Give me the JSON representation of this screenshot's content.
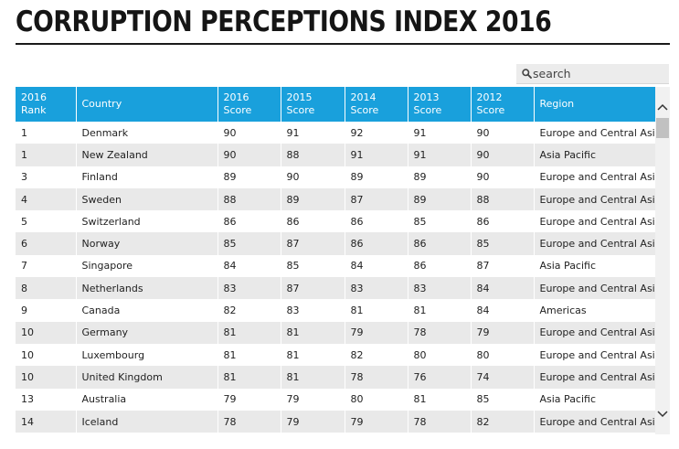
{
  "title": "CORRUPTION PERCEPTIONS INDEX 2016",
  "search": {
    "placeholder": "search"
  },
  "table": {
    "headers": [
      [
        "2016",
        "Rank"
      ],
      [
        "Country",
        ""
      ],
      [
        "2016",
        "Score"
      ],
      [
        "2015",
        "Score"
      ],
      [
        "2014",
        "Score"
      ],
      [
        "2013",
        "Score"
      ],
      [
        "2012",
        "Score"
      ],
      [
        "Region",
        ""
      ]
    ],
    "rows": [
      [
        "1",
        "Denmark",
        "90",
        "91",
        "92",
        "91",
        "90",
        "Europe and Central Asia"
      ],
      [
        "1",
        "New Zealand",
        "90",
        "88",
        "91",
        "91",
        "90",
        "Asia Pacific"
      ],
      [
        "3",
        "Finland",
        "89",
        "90",
        "89",
        "89",
        "90",
        "Europe and Central Asia"
      ],
      [
        "4",
        "Sweden",
        "88",
        "89",
        "87",
        "89",
        "88",
        "Europe and Central Asia"
      ],
      [
        "5",
        "Switzerland",
        "86",
        "86",
        "86",
        "85",
        "86",
        "Europe and Central Asia"
      ],
      [
        "6",
        "Norway",
        "85",
        "87",
        "86",
        "86",
        "85",
        "Europe and Central Asia"
      ],
      [
        "7",
        "Singapore",
        "84",
        "85",
        "84",
        "86",
        "87",
        "Asia Pacific"
      ],
      [
        "8",
        "Netherlands",
        "83",
        "87",
        "83",
        "83",
        "84",
        "Europe and Central Asia"
      ],
      [
        "9",
        "Canada",
        "82",
        "83",
        "81",
        "81",
        "84",
        "Americas"
      ],
      [
        "10",
        "Germany",
        "81",
        "81",
        "79",
        "78",
        "79",
        "Europe and Central Asia"
      ],
      [
        "10",
        "Luxembourg",
        "81",
        "81",
        "82",
        "80",
        "80",
        "Europe and Central Asia"
      ],
      [
        "10",
        "United Kingdom",
        "81",
        "81",
        "78",
        "76",
        "74",
        "Europe and Central Asia"
      ],
      [
        "13",
        "Australia",
        "79",
        "79",
        "80",
        "81",
        "85",
        "Asia Pacific"
      ],
      [
        "14",
        "Iceland",
        "78",
        "79",
        "79",
        "78",
        "82",
        "Europe and Central Asia"
      ]
    ]
  },
  "colors": {
    "header_bg": "#19a0dc",
    "row_alt": "#e9e9e9"
  },
  "icons": {
    "search": "search-icon",
    "scroll_up": "chevron-up-icon",
    "scroll_down": "chevron-down-icon"
  }
}
